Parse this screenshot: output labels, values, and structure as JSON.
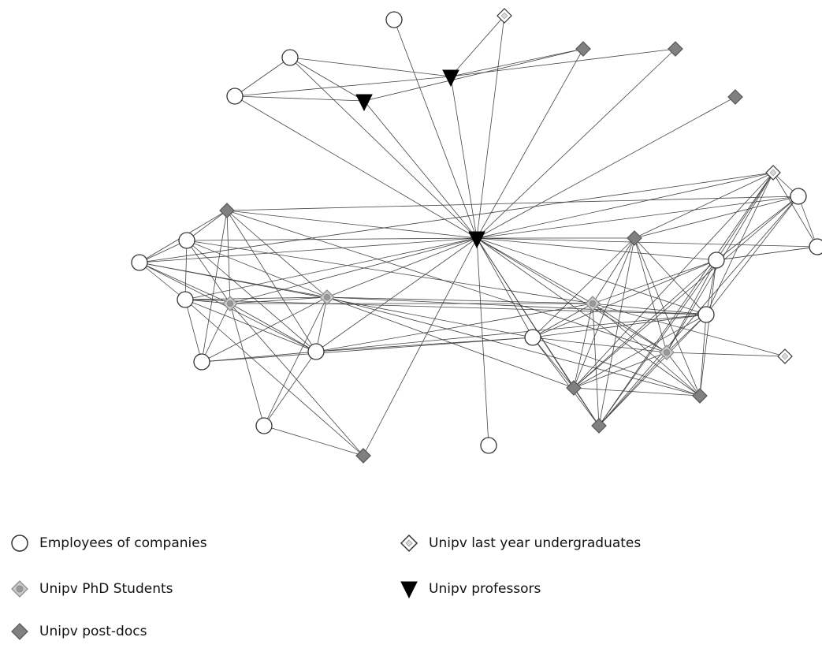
{
  "legend": {
    "employees": "Employees of companies",
    "undergrads": "Unipv last year undergraduates",
    "phd": "Unipv PhD Students",
    "professors": "Unipv professors",
    "postdocs": "Unipv post-docs"
  },
  "node_types": {
    "E": {
      "name": "employees",
      "shape": "circle",
      "fill": "#ffffff"
    },
    "U": {
      "name": "undergrads",
      "shape": "diamond",
      "fill": "#ffffff"
    },
    "S": {
      "name": "phd",
      "shape": "diamond-dot",
      "fill": "#c8c8c8"
    },
    "P": {
      "name": "professors",
      "shape": "triangle-down",
      "fill": "#000000"
    },
    "D": {
      "name": "postdocs",
      "shape": "diamond",
      "fill": "#808080"
    }
  },
  "colors": {
    "edge": "#444444",
    "stroke": "#333333"
  }
}
